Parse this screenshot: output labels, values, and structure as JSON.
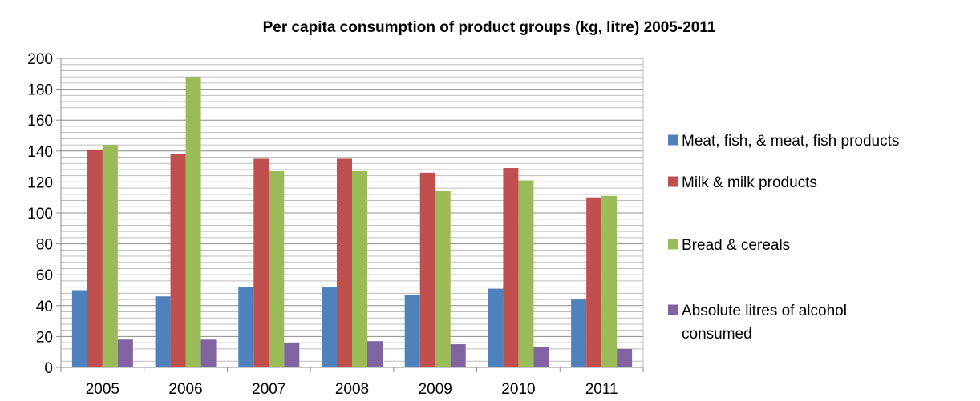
{
  "chart_data": {
    "type": "bar",
    "title": "Per capita consumption of product groups (kg, litre) 2005-2011",
    "xlabel": "",
    "ylabel": "",
    "categories": [
      "2005",
      "2006",
      "2007",
      "2008",
      "2009",
      "2010",
      "2011"
    ],
    "ylim": [
      0,
      200
    ],
    "y_ticks": [
      0,
      20,
      40,
      60,
      80,
      100,
      120,
      140,
      160,
      180,
      200
    ],
    "y_minor_step": 4,
    "grid": true,
    "legend_position": "right",
    "series": [
      {
        "name": "Meat, fish, & meat, fish products",
        "color": "#4f81bd",
        "values": [
          50,
          46,
          52,
          52,
          47,
          51,
          44
        ]
      },
      {
        "name": "Milk & milk products",
        "color": "#c0504d",
        "values": [
          141,
          138,
          135,
          135,
          126,
          129,
          110
        ]
      },
      {
        "name": "Bread & cereals",
        "color": "#9bbb59",
        "values": [
          144,
          188,
          127,
          127,
          114,
          121,
          111
        ]
      },
      {
        "name": "Absolute litres of alcohol consumed",
        "color": "#8064a2",
        "values": [
          18,
          18,
          16,
          17,
          15,
          13,
          12
        ],
        "legend_lines": [
          "Absolute litres of alcohol",
          "consumed"
        ]
      }
    ]
  }
}
